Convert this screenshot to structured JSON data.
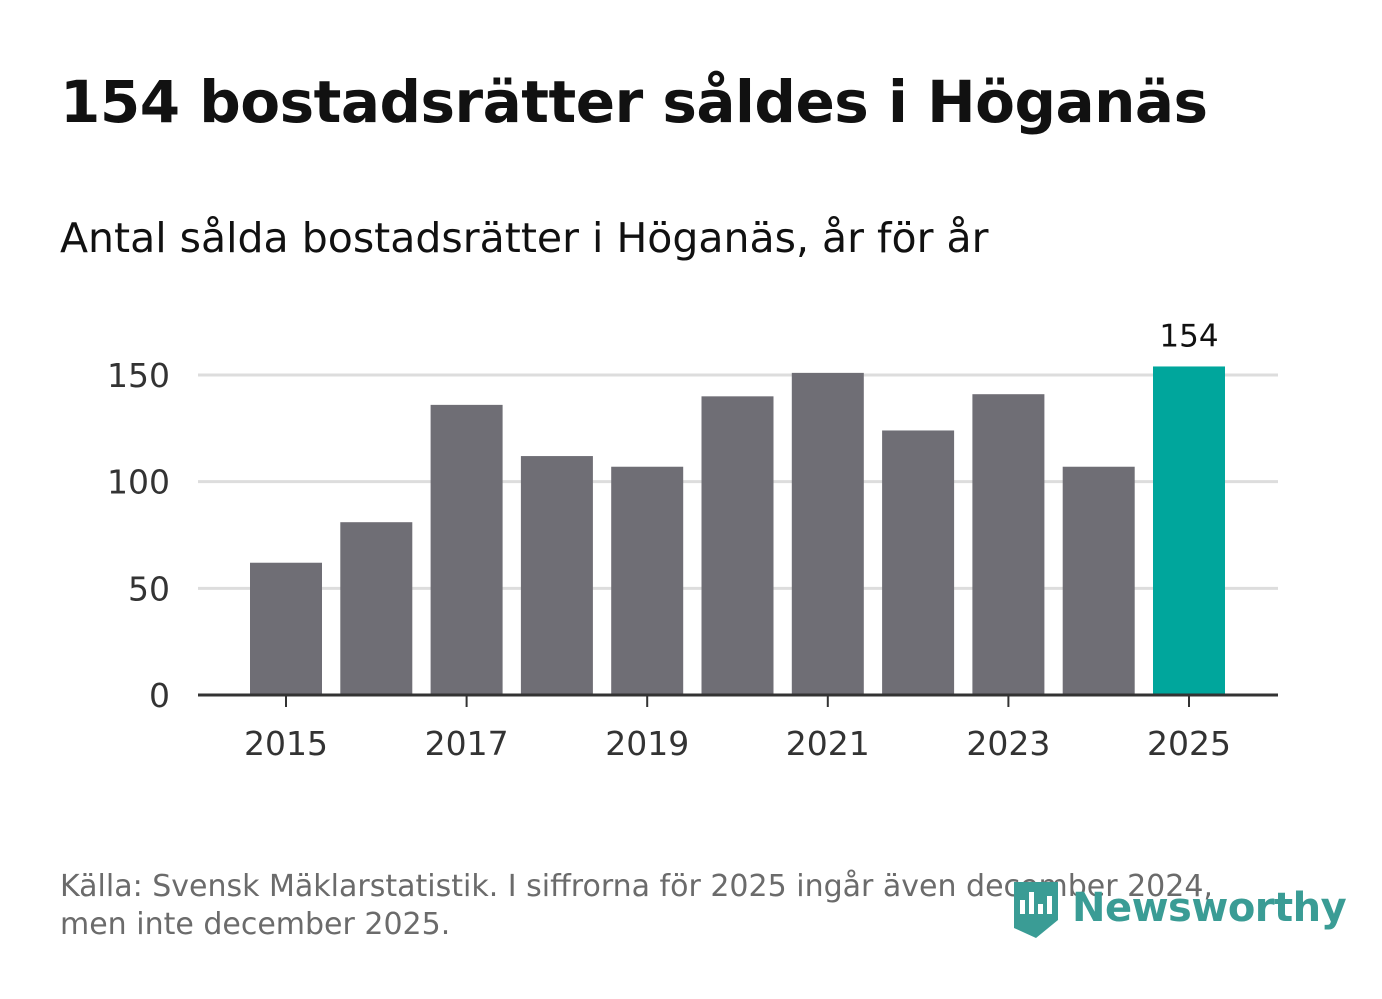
{
  "title": "154 bostadsrätter såldes i Höganäs",
  "subtitle": "Antal sålda bostadsrätter i Höganäs, år för år",
  "source_line1": "Källa: Svensk Mäklarstatistik. I siffrorna för 2025 ingår även december 2024,",
  "source_line2": "men inte december 2025.",
  "brand": "Newsworthy",
  "colors": {
    "bar": "#6f6e75",
    "highlight": "#00a69c",
    "grid": "#dddddd",
    "axis": "#333333",
    "brand": "#3a9c95"
  },
  "chart_data": {
    "type": "bar",
    "title": "Antal sålda bostadsrätter i Höganäs, år för år",
    "xlabel": "",
    "ylabel": "",
    "categories": [
      "2015",
      "2016",
      "2017",
      "2018",
      "2019",
      "2020",
      "2021",
      "2022",
      "2023",
      "2024",
      "2025"
    ],
    "values": [
      62,
      81,
      136,
      112,
      107,
      140,
      151,
      124,
      141,
      107,
      154
    ],
    "highlight_index": 10,
    "data_labels": {
      "10": "154"
    },
    "ylim": [
      0,
      150
    ],
    "yticks": [
      0,
      50,
      100,
      150
    ],
    "xticks": [
      "2015",
      "2017",
      "2019",
      "2021",
      "2023",
      "2025"
    ],
    "grid": true
  }
}
